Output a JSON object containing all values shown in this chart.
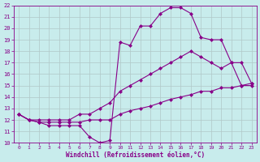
{
  "xlabel": "Windchill (Refroidissement éolien,°C)",
  "bg_color": "#c8ecec",
  "line_color": "#880088",
  "grid_color": "#b0c8c8",
  "xlim": [
    -0.5,
    23.5
  ],
  "ylim": [
    10,
    22
  ],
  "xticks": [
    0,
    1,
    2,
    3,
    4,
    5,
    6,
    7,
    8,
    9,
    10,
    11,
    12,
    13,
    14,
    15,
    16,
    17,
    18,
    19,
    20,
    21,
    22,
    23
  ],
  "yticks": [
    10,
    11,
    12,
    13,
    14,
    15,
    16,
    17,
    18,
    19,
    20,
    21,
    22
  ],
  "line1_x": [
    0,
    1,
    2,
    3,
    4,
    5,
    6,
    7,
    8,
    9,
    10,
    11,
    12,
    13,
    14,
    15,
    16,
    17,
    18,
    19,
    20,
    21,
    22,
    23
  ],
  "line1_y": [
    12.5,
    12.0,
    11.8,
    11.8,
    11.8,
    11.8,
    11.8,
    12.0,
    12.0,
    12.0,
    12.5,
    12.8,
    13.0,
    13.2,
    13.5,
    13.8,
    14.0,
    14.2,
    14.5,
    14.5,
    14.8,
    14.8,
    15.0,
    15.0
  ],
  "line2_x": [
    0,
    1,
    2,
    3,
    4,
    5,
    6,
    7,
    8,
    9,
    10,
    11,
    12,
    13,
    14,
    15,
    16,
    17,
    18,
    19,
    20,
    21,
    22,
    23
  ],
  "line2_y": [
    12.5,
    12.0,
    12.0,
    12.0,
    12.0,
    12.0,
    12.5,
    12.5,
    13.0,
    13.5,
    14.5,
    15.0,
    15.5,
    16.0,
    16.5,
    17.0,
    17.5,
    18.0,
    17.5,
    17.0,
    16.5,
    17.0,
    15.0,
    15.2
  ],
  "line3_x": [
    0,
    1,
    2,
    3,
    4,
    5,
    6,
    7,
    8,
    9,
    10,
    11,
    12,
    13,
    14,
    15,
    16,
    17,
    18,
    19,
    20,
    21,
    22,
    23
  ],
  "line3_y": [
    12.5,
    12.0,
    11.8,
    11.5,
    11.5,
    11.5,
    11.5,
    10.5,
    10.0,
    10.2,
    18.8,
    18.5,
    20.2,
    20.2,
    21.3,
    21.8,
    21.8,
    21.3,
    19.2,
    19.0,
    19.0,
    17.0,
    17.0,
    15.2
  ]
}
